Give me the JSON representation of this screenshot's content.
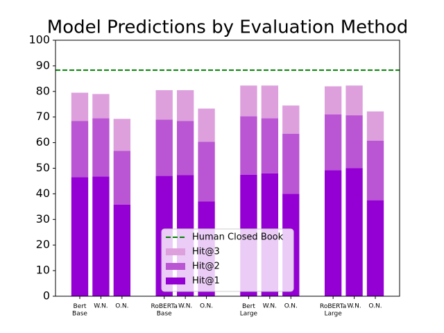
{
  "chart_data": {
    "type": "stacked_bar",
    "title": "Model Predictions by Evaluation Method",
    "categories": [
      "Bert\nBase",
      "W.N.",
      "O.N.",
      null,
      "RoBERTa\nBase",
      "W.N.",
      "O.N.",
      null,
      "Bert\nLarge",
      "W.N.",
      "O.N.",
      null,
      "RoBERTa\nLarge",
      "W.N.",
      "O.N."
    ],
    "series": [
      {
        "name": "Hit@1",
        "color": "#9400d3",
        "values": [
          46.5,
          46.8,
          35.8,
          null,
          47,
          47.3,
          37,
          null,
          47.5,
          48,
          40,
          null,
          49.2,
          50,
          37.5
        ]
      },
      {
        "name": "Hit@2",
        "color": "#ba55d3",
        "values": [
          22,
          22.7,
          21,
          null,
          22,
          21.2,
          23.3,
          null,
          22.8,
          21.5,
          23.5,
          null,
          21.8,
          20.7,
          23.3
        ]
      },
      {
        "name": "Hit@3",
        "color": "#dda0dd",
        "values": [
          11,
          9.5,
          12.5,
          null,
          11.5,
          12,
          13,
          null,
          12,
          12.8,
          11,
          null,
          11,
          11.6,
          11.4
        ]
      }
    ],
    "reference_lines": [
      {
        "name": "Human Closed Book",
        "value": 88.3,
        "color": "#008000",
        "style": "dashed"
      }
    ],
    "ylim": [
      0,
      100
    ],
    "yticks": [
      0,
      10,
      20,
      30,
      40,
      50,
      60,
      70,
      80,
      90,
      100
    ],
    "legend": "lower center"
  }
}
